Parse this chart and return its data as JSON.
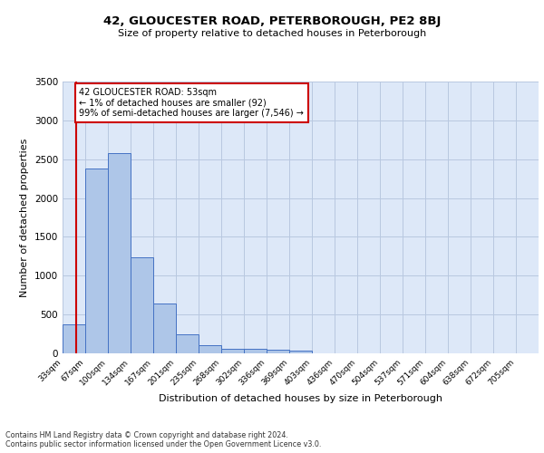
{
  "title1": "42, GLOUCESTER ROAD, PETERBOROUGH, PE2 8BJ",
  "title2": "Size of property relative to detached houses in Peterborough",
  "xlabel": "Distribution of detached houses by size in Peterborough",
  "ylabel": "Number of detached properties",
  "footnote1": "Contains HM Land Registry data © Crown copyright and database right 2024.",
  "footnote2": "Contains public sector information licensed under the Open Government Licence v3.0.",
  "bin_labels": [
    "33sqm",
    "67sqm",
    "100sqm",
    "134sqm",
    "167sqm",
    "201sqm",
    "235sqm",
    "268sqm",
    "302sqm",
    "336sqm",
    "369sqm",
    "403sqm",
    "436sqm",
    "470sqm",
    "504sqm",
    "537sqm",
    "571sqm",
    "604sqm",
    "638sqm",
    "672sqm",
    "705sqm"
  ],
  "bar_values": [
    370,
    2380,
    2580,
    1240,
    640,
    250,
    100,
    60,
    55,
    45,
    40,
    0,
    0,
    0,
    0,
    0,
    0,
    0,
    0,
    0,
    0
  ],
  "bar_color": "#aec6e8",
  "bar_edge_color": "#4472c4",
  "bg_color": "#dde8f8",
  "grid_color": "#b8c8e0",
  "vline_color": "#cc0000",
  "annotation_text": "42 GLOUCESTER ROAD: 53sqm\n← 1% of detached houses are smaller (92)\n99% of semi-detached houses are larger (7,546) →",
  "annotation_box_color": "#ffffff",
  "annotation_border_color": "#cc0000",
  "ylim": [
    0,
    3500
  ],
  "yticks": [
    0,
    500,
    1000,
    1500,
    2000,
    2500,
    3000,
    3500
  ]
}
